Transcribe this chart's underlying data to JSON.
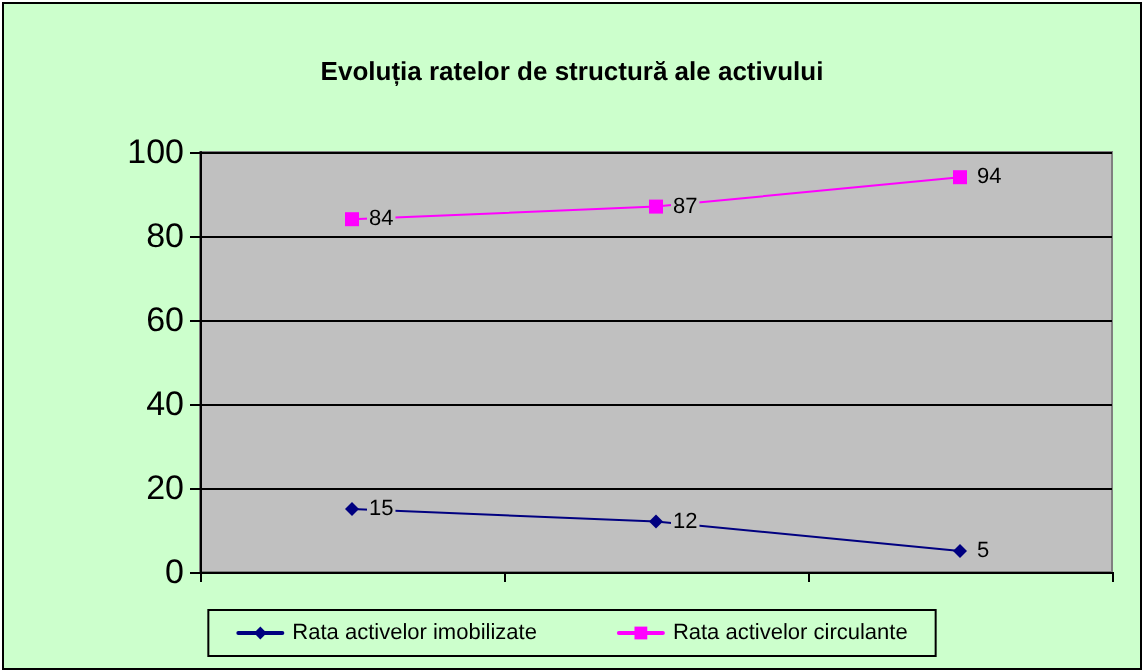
{
  "chart_data": {
    "type": "line",
    "title": "Evoluția ratelor de structură ale activului",
    "categories": [
      null,
      null,
      null
    ],
    "series": [
      {
        "name": "Rata activelor imobilizate",
        "color": "#000080",
        "marker": "diamond",
        "values": [
          15,
          12,
          5
        ]
      },
      {
        "name": "Rata activelor circulante",
        "color": "#ff00ff",
        "marker": "square",
        "values": [
          84,
          87,
          94
        ]
      }
    ],
    "ylim": [
      0,
      100
    ],
    "yticks": [
      0,
      20,
      40,
      60,
      80,
      100
    ],
    "grid": "y",
    "legend": "bottom",
    "data_labels": true,
    "line_style": "solid"
  }
}
